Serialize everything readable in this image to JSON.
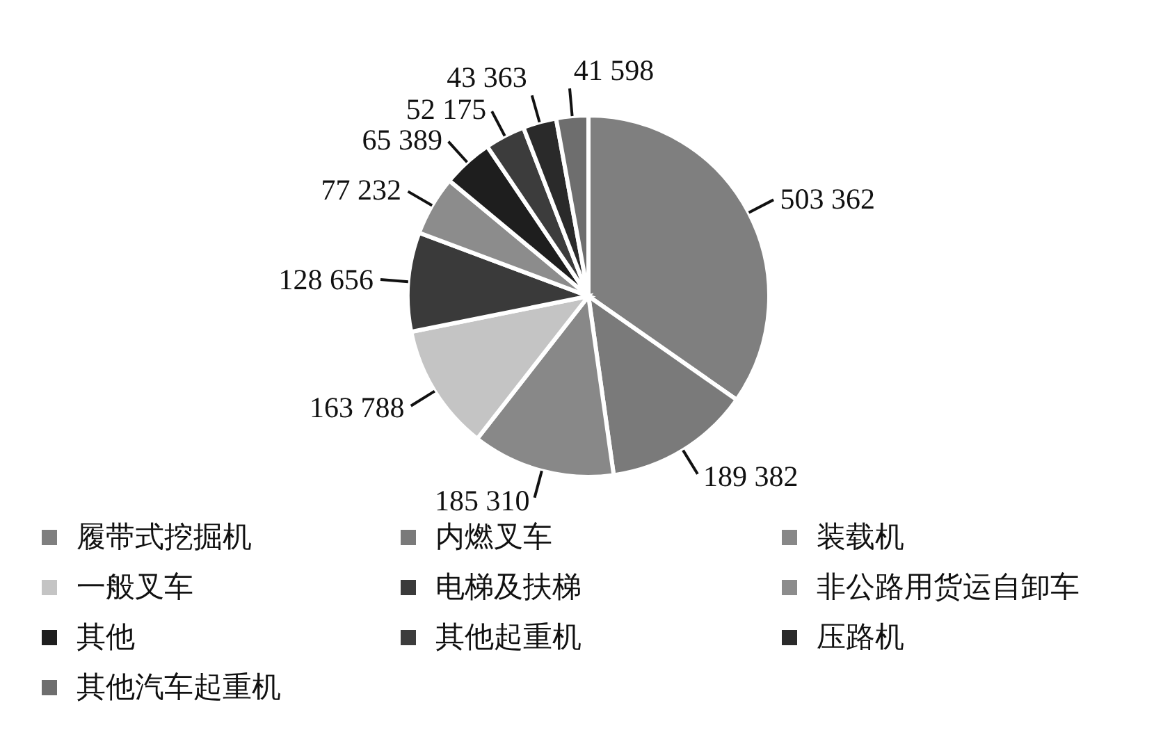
{
  "chart_data": {
    "type": "pie",
    "categories": [
      "履带式挖掘机",
      "内燃叉车",
      "装载机",
      "一般叉车",
      "电梯及扶梯",
      "非公路用货运自卸车",
      "其他",
      "其他起重机",
      "压路机",
      "其他汽车起重机"
    ],
    "values": [
      503362,
      189382,
      185310,
      163788,
      128656,
      77232,
      65389,
      52175,
      43363,
      41598
    ],
    "colors": [
      "#7f7f7f",
      "#7a7a7a",
      "#888888",
      "#c4c4c4",
      "#3a3a3a",
      "#8c8c8c",
      "#1e1e1e",
      "#3c3c3c",
      "#2a2a2a",
      "#6e6e6e"
    ],
    "data_labels": true,
    "legend": "bottom"
  }
}
